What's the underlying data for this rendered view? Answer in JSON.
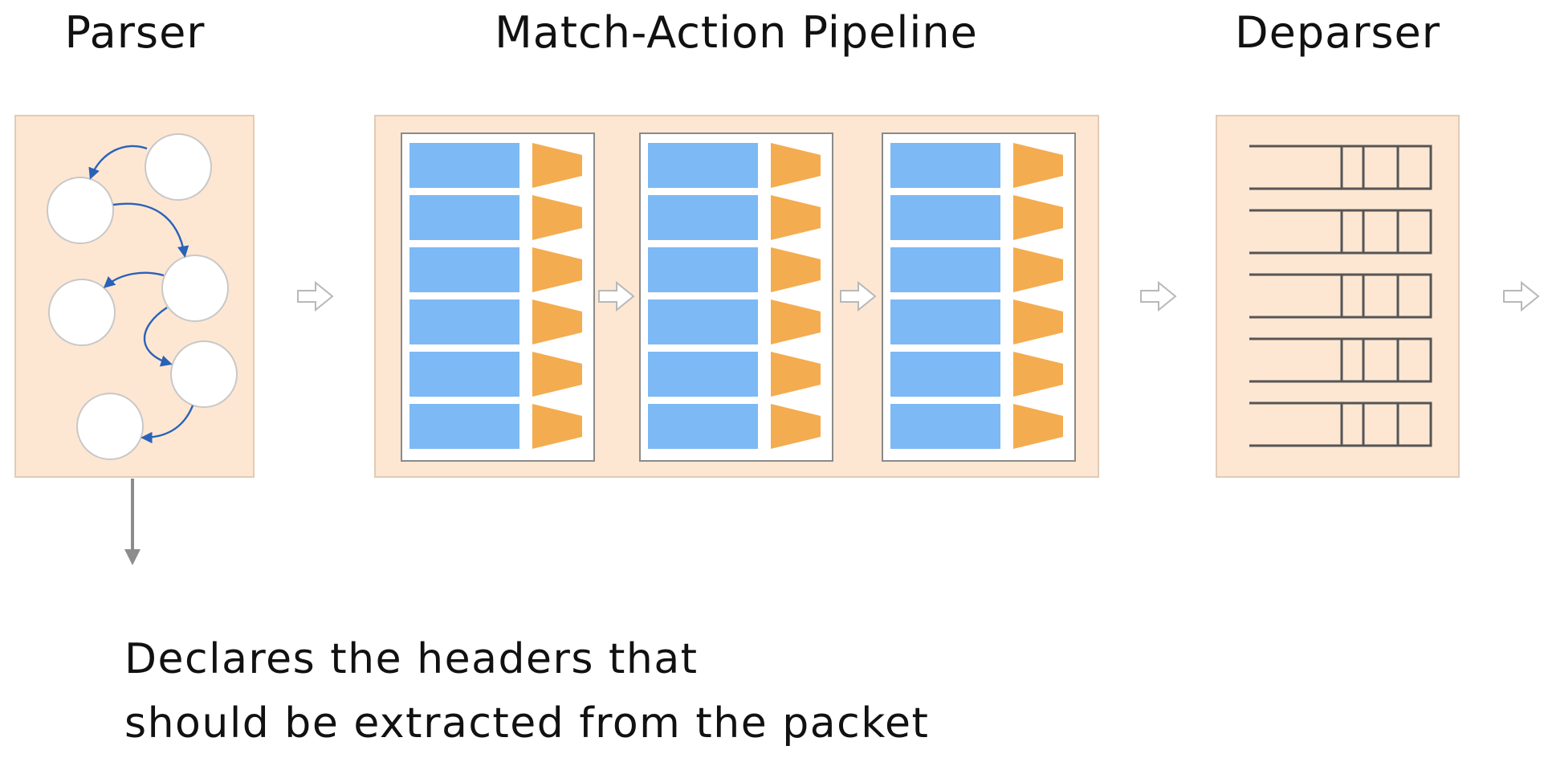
{
  "titles": {
    "parser": "Parser",
    "pipeline": "Match-Action Pipeline",
    "deparser": "Deparser"
  },
  "caption": {
    "line1": "Declares the headers that",
    "line2": "should be extracted from the packet"
  },
  "colors": {
    "panel": "#fde7d3",
    "match_table": "#7db9f5",
    "action": "#f4ac50",
    "edge": "#2a62b8",
    "down_arrow": "#8c8c8c"
  }
}
